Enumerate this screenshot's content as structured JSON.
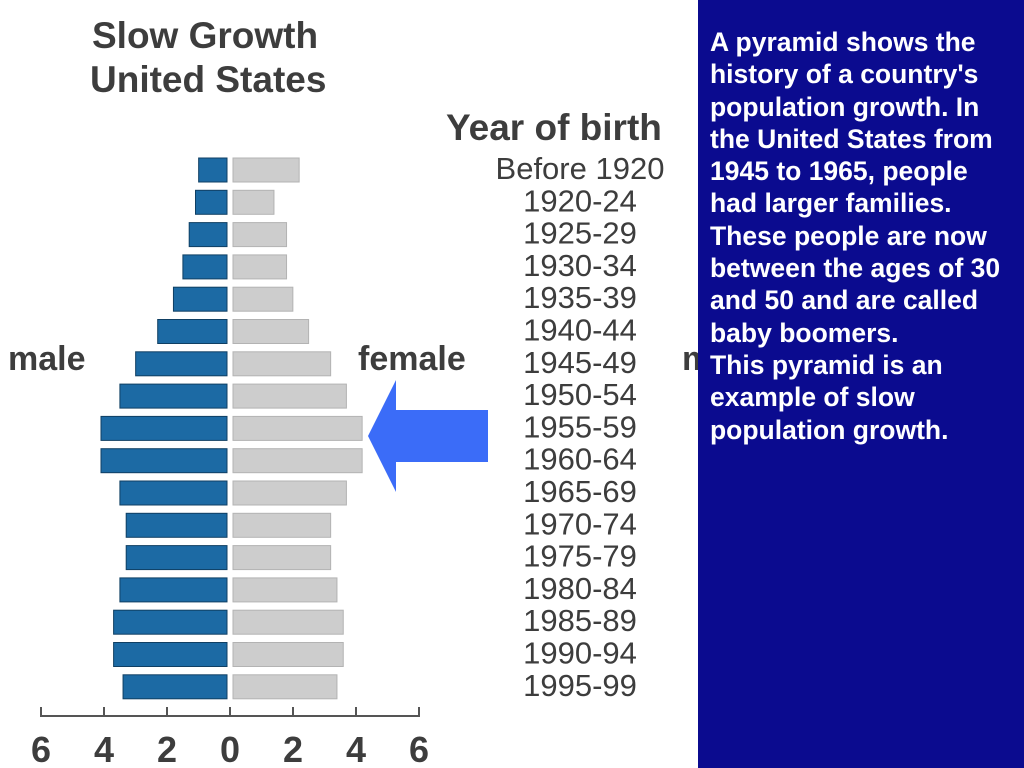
{
  "slide": {
    "background_color": "#0b0b8f",
    "caption_text_color": "#ffffff",
    "caption_paragraph_1": "A pyramid shows the history of a country's population growth. In the United States from 1945 to 1965, people had larger families. These people are now between the ages of 30 and 50 and are called baby boomers.",
    "caption_paragraph_2": "This pyramid is an example of slow population growth.",
    "arrow": {
      "icon": "left-arrow-icon",
      "color": "#3b6cf8",
      "points_to": "1955-59"
    }
  },
  "chart_data": {
    "type": "bar",
    "orientation": "horizontal-pyramid",
    "title_line_1": "Slow Growth",
    "title_line_2": "United States",
    "category_axis_label": "Year of birth",
    "left_label": "male",
    "right_label": "female",
    "right_edge_label": "m",
    "categories": [
      "Before 1920",
      "1920-24",
      "1925-29",
      "1930-34",
      "1935-39",
      "1940-44",
      "1945-49",
      "1950-54",
      "1955-59",
      "1960-64",
      "1965-69",
      "1970-74",
      "1975-79",
      "1980-84",
      "1985-89",
      "1990-94",
      "1995-99"
    ],
    "series": [
      {
        "name": "male",
        "color": "#1c6aa4",
        "values": [
          0.9,
          1.0,
          1.2,
          1.4,
          1.7,
          2.2,
          2.9,
          3.4,
          4.0,
          4.0,
          3.4,
          3.2,
          3.2,
          3.4,
          3.6,
          3.6,
          3.3
        ]
      },
      {
        "name": "female",
        "color": "#cdcdcd",
        "values": [
          2.1,
          1.3,
          1.7,
          1.7,
          1.9,
          2.4,
          3.1,
          3.6,
          4.1,
          4.1,
          3.6,
          3.1,
          3.1,
          3.3,
          3.5,
          3.5,
          3.3
        ]
      }
    ],
    "xlim": [
      -6,
      6
    ],
    "ticks": [
      -6,
      -4,
      -2,
      0,
      2,
      4,
      6
    ],
    "tick_labels": [
      "6",
      "4",
      "2",
      "0",
      "2",
      "4",
      "6"
    ]
  }
}
